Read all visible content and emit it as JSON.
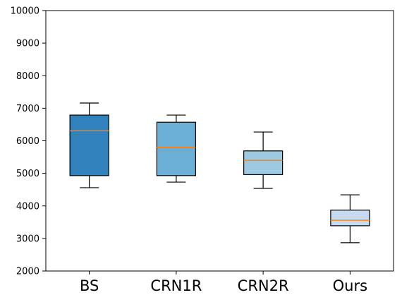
{
  "chart_data": {
    "type": "boxplot",
    "title": "",
    "xlabel": "",
    "ylabel": "",
    "ylim": [
      2000,
      10000
    ],
    "yticks": [
      2000,
      3000,
      4000,
      5000,
      6000,
      7000,
      8000,
      9000,
      10000
    ],
    "grid": false,
    "categories": [
      "BS",
      "CRN1R",
      "CRN2R",
      "Ours"
    ],
    "boxes": [
      {
        "label": "BS",
        "whisker_low": 4560,
        "q1": 4930,
        "median": 6310,
        "q3": 6790,
        "whisker_high": 7160,
        "fill": "#3182bd"
      },
      {
        "label": "CRN1R",
        "whisker_low": 4730,
        "q1": 4930,
        "median": 5800,
        "q3": 6570,
        "whisker_high": 6790,
        "fill": "#6baed6"
      },
      {
        "label": "CRN2R",
        "whisker_low": 4540,
        "q1": 4960,
        "median": 5400,
        "q3": 5690,
        "whisker_high": 6270,
        "fill": "#9ecae1"
      },
      {
        "label": "Ours",
        "whisker_low": 2870,
        "q1": 3390,
        "median": 3560,
        "q3": 3870,
        "whisker_high": 4340,
        "fill": "#c6dbef"
      }
    ],
    "median_color": "#ff7f0e"
  }
}
